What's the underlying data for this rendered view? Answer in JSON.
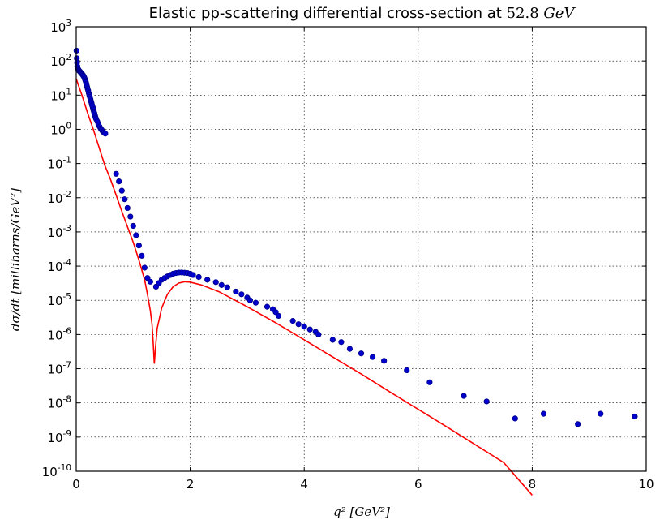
{
  "chart_data": {
    "type": "scatter",
    "title": "Elastic pp-scattering differential cross-section at 52.8 GeV",
    "title_parts": {
      "text": "Elastic pp-scattering differential cross-section at",
      "value": "52.8",
      "unit": "GeV"
    },
    "xlabel": "q² [GeV²]",
    "ylabel": "dσ/dt [millibarns/GeV²]",
    "xlim": [
      0,
      10
    ],
    "ylim": [
      1e-10,
      1000
    ],
    "yscale": "log",
    "grid": true,
    "grid_style": "dotted",
    "x_ticks": [
      "0",
      "2",
      "4",
      "6",
      "8",
      "10"
    ],
    "y_ticks": [
      {
        "base": "10",
        "exp": "-10"
      },
      {
        "base": "10",
        "exp": "-9"
      },
      {
        "base": "10",
        "exp": "-8"
      },
      {
        "base": "10",
        "exp": "-7"
      },
      {
        "base": "10",
        "exp": "-6"
      },
      {
        "base": "10",
        "exp": "-5"
      },
      {
        "base": "10",
        "exp": "-4"
      },
      {
        "base": "10",
        "exp": "-3"
      },
      {
        "base": "10",
        "exp": "-2"
      },
      {
        "base": "10",
        "exp": "-1"
      },
      {
        "base": "10",
        "exp": "0"
      },
      {
        "base": "10",
        "exp": "1"
      },
      {
        "base": "10",
        "exp": "2"
      },
      {
        "base": "10",
        "exp": "3"
      }
    ],
    "series": [
      {
        "kind": "scatter",
        "color": "#0000cd",
        "edge_color": "#00008b",
        "points": [
          [
            0.005,
            200
          ],
          [
            0.01,
            120
          ],
          [
            0.015,
            90
          ],
          [
            0.02,
            70
          ],
          [
            0.03,
            60
          ],
          [
            0.04,
            55
          ],
          [
            0.05,
            52
          ],
          [
            0.06,
            50
          ],
          [
            0.07,
            48
          ],
          [
            0.08,
            46
          ],
          [
            0.09,
            44
          ],
          [
            0.1,
            42
          ],
          [
            0.11,
            40
          ],
          [
            0.12,
            38
          ],
          [
            0.13,
            36
          ],
          [
            0.14,
            33
          ],
          [
            0.15,
            30
          ],
          [
            0.16,
            27
          ],
          [
            0.17,
            24
          ],
          [
            0.18,
            21
          ],
          [
            0.19,
            18
          ],
          [
            0.2,
            15.5
          ],
          [
            0.21,
            13.5
          ],
          [
            0.22,
            11.5
          ],
          [
            0.23,
            10
          ],
          [
            0.24,
            8.8
          ],
          [
            0.25,
            7.6
          ],
          [
            0.26,
            6.6
          ],
          [
            0.27,
            5.8
          ],
          [
            0.28,
            5
          ],
          [
            0.29,
            4.4
          ],
          [
            0.3,
            3.8
          ],
          [
            0.31,
            3.3
          ],
          [
            0.32,
            2.9
          ],
          [
            0.33,
            2.5
          ],
          [
            0.34,
            2.2
          ],
          [
            0.35,
            2
          ],
          [
            0.37,
            1.7
          ],
          [
            0.39,
            1.4
          ],
          [
            0.41,
            1.2
          ],
          [
            0.43,
            1.05
          ],
          [
            0.45,
            0.95
          ],
          [
            0.47,
            0.85
          ],
          [
            0.49,
            0.8
          ],
          [
            0.51,
            0.75
          ],
          [
            0.7,
            0.05
          ],
          [
            0.75,
            0.03
          ],
          [
            0.8,
            0.016
          ],
          [
            0.85,
            0.009
          ],
          [
            0.9,
            0.005
          ],
          [
            0.95,
            0.0028
          ],
          [
            1.0,
            0.0015
          ],
          [
            1.05,
            0.0008
          ],
          [
            1.1,
            0.0004
          ],
          [
            1.15,
            0.0002
          ],
          [
            1.2,
            9e-05
          ],
          [
            1.25,
            4.5e-05
          ],
          [
            1.3,
            3.5e-05
          ],
          [
            1.4,
            2.5e-05
          ],
          [
            1.45,
            3.2e-05
          ],
          [
            1.5,
            4e-05
          ],
          [
            1.55,
            4.5e-05
          ],
          [
            1.6,
            5e-05
          ],
          [
            1.65,
            5.5e-05
          ],
          [
            1.7,
            6e-05
          ],
          [
            1.75,
            6.3e-05
          ],
          [
            1.8,
            6.5e-05
          ],
          [
            1.85,
            6.5e-05
          ],
          [
            1.9,
            6.4e-05
          ],
          [
            1.95,
            6.3e-05
          ],
          [
            2.0,
            6e-05
          ],
          [
            2.05,
            5.5e-05
          ],
          [
            2.15,
            4.8e-05
          ],
          [
            2.3,
            4e-05
          ],
          [
            2.45,
            3.4e-05
          ],
          [
            2.55,
            2.8e-05
          ],
          [
            2.65,
            2.4e-05
          ],
          [
            2.8,
            1.8e-05
          ],
          [
            2.9,
            1.5e-05
          ],
          [
            3.0,
            1.2e-05
          ],
          [
            3.05,
            1e-05
          ],
          [
            3.15,
            8.5e-06
          ],
          [
            3.35,
            6.5e-06
          ],
          [
            3.45,
            5.5e-06
          ],
          [
            3.5,
            4.5e-06
          ],
          [
            3.55,
            3.5e-06
          ],
          [
            3.8,
            2.5e-06
          ],
          [
            3.9,
            2e-06
          ],
          [
            4.0,
            1.7e-06
          ],
          [
            4.1,
            1.4e-06
          ],
          [
            4.2,
            1.2e-06
          ],
          [
            4.25,
            1e-06
          ],
          [
            4.5,
            7e-07
          ],
          [
            4.65,
            6e-07
          ],
          [
            4.8,
            3.8e-07
          ],
          [
            5.0,
            2.8e-07
          ],
          [
            5.2,
            2.2e-07
          ],
          [
            5.4,
            1.7e-07
          ],
          [
            5.8,
            9e-08
          ],
          [
            6.2,
            4e-08
          ],
          [
            6.8,
            1.6e-08
          ],
          [
            7.2,
            1.1e-08
          ],
          [
            7.7,
            3.5e-09
          ],
          [
            8.2,
            4.8e-09
          ],
          [
            8.8,
            2.4e-09
          ],
          [
            9.2,
            4.8e-09
          ],
          [
            9.8,
            4e-09
          ]
        ]
      },
      {
        "kind": "line",
        "color": "#ff0000",
        "points": [
          [
            0.0,
            30
          ],
          [
            0.1,
            10
          ],
          [
            0.2,
            3
          ],
          [
            0.3,
            1
          ],
          [
            0.4,
            0.3
          ],
          [
            0.5,
            0.09
          ],
          [
            0.6,
            0.035
          ],
          [
            0.7,
            0.012
          ],
          [
            0.8,
            0.004
          ],
          [
            0.9,
            0.0014
          ],
          [
            1.0,
            0.0005
          ],
          [
            1.1,
            0.00015
          ],
          [
            1.2,
            4e-05
          ],
          [
            1.25,
            1.5e-05
          ],
          [
            1.3,
            5e-06
          ],
          [
            1.33,
            2e-06
          ],
          [
            1.35,
            6e-07
          ],
          [
            1.37,
            1.4e-07
          ],
          [
            1.39,
            4e-07
          ],
          [
            1.42,
            1.5e-06
          ],
          [
            1.5,
            6e-06
          ],
          [
            1.6,
            1.5e-05
          ],
          [
            1.7,
            2.5e-05
          ],
          [
            1.8,
            3.2e-05
          ],
          [
            1.9,
            3.5e-05
          ],
          [
            2.0,
            3.4e-05
          ],
          [
            2.2,
            2.8e-05
          ],
          [
            2.5,
            1.8e-05
          ],
          [
            3.0,
            6.5e-06
          ],
          [
            3.5,
            2.2e-06
          ],
          [
            4.0,
            7e-07
          ],
          [
            4.5,
            2.2e-07
          ],
          [
            5.0,
            7e-08
          ],
          [
            5.5,
            2.1e-08
          ],
          [
            6.0,
            6.5e-09
          ],
          [
            6.5,
            2e-09
          ],
          [
            7.0,
            6e-10
          ],
          [
            7.5,
            1.8e-10
          ],
          [
            8.0,
            2e-11
          ]
        ]
      }
    ]
  }
}
